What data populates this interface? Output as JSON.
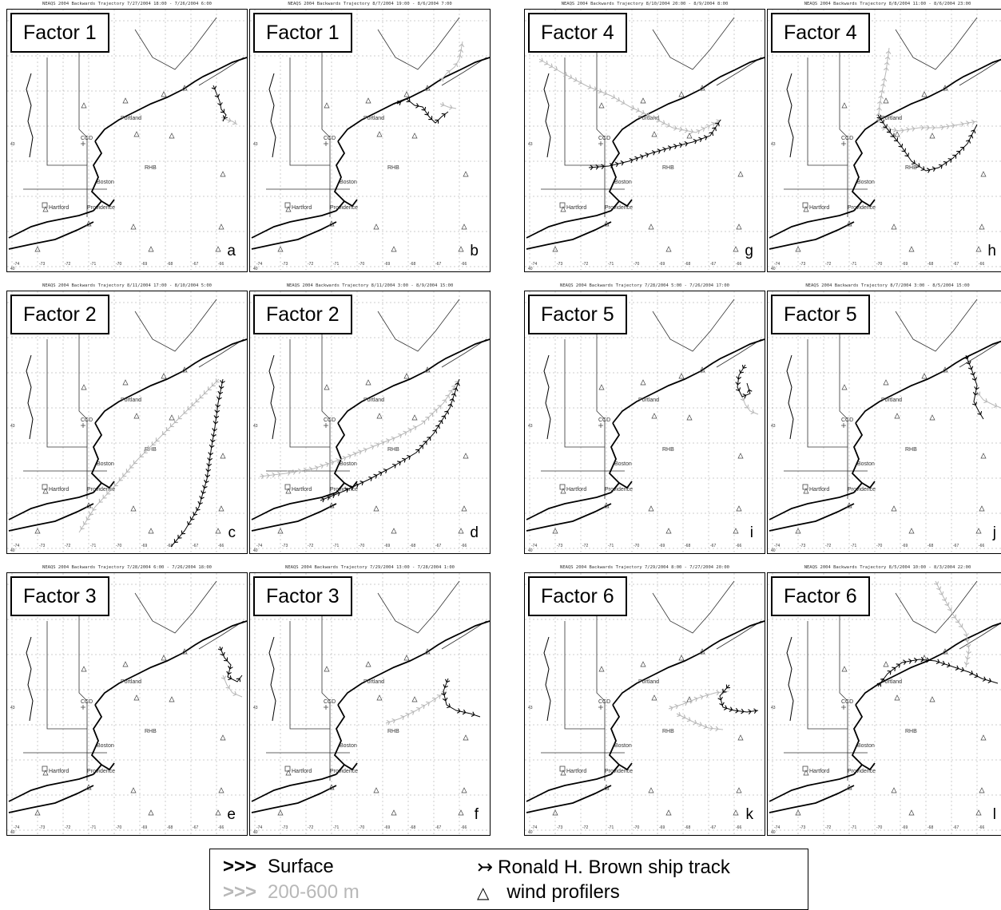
{
  "panels": [
    {
      "title": "NEAQS 2004 Backwards Trajectory 7/27/2004 18:00 - 7/26/2004 6:00",
      "factor": "Factor 1",
      "label": "a"
    },
    {
      "title": "NEAQS 2004 Backwards Trajectory 8/7/2004 19:00 - 8/6/2004 7:00",
      "factor": "Factor 1",
      "label": "b"
    },
    {
      "title": "NEAQS 2004 Backwards Trajectory 8/10/2004 20:00 - 8/9/2004 8:00",
      "factor": "Factor 4",
      "label": "g"
    },
    {
      "title": "NEAQS 2004 Backwards Trajectory 8/8/2004 11:00 - 8/6/2004 23:00",
      "factor": "Factor 4",
      "label": "h"
    },
    {
      "title": "NEAQS 2004 Backwards Trajectory 8/11/2004 17:00 - 8/10/2004 5:00",
      "factor": "Factor 2",
      "label": "c"
    },
    {
      "title": "NEAQS 2004 Backwards Trajectory 8/11/2004 3:00 - 8/9/2004 15:00",
      "factor": "Factor 2",
      "label": "d"
    },
    {
      "title": "NEAQS 2004 Backwards Trajectory 7/28/2004 5:00 - 7/26/2004 17:00",
      "factor": "Factor 5",
      "label": "i"
    },
    {
      "title": "NEAQS 2004 Backwards Trajectory 8/7/2004 3:00 - 8/5/2004 15:00",
      "factor": "Factor 5",
      "label": "j"
    },
    {
      "title": "NEAQS 2004 Backwards Trajectory 7/28/2004 6:00 - 7/26/2004 18:00",
      "factor": "Factor 3",
      "label": "e"
    },
    {
      "title": "NEAQS 2004 Backwards Trajectory 7/29/2004 13:00 - 7/28/2004 1:00",
      "factor": "Factor 3",
      "label": "f"
    },
    {
      "title": "NEAQS 2004 Backwards Trajectory 7/29/2004 8:00 - 7/27/2004 20:00",
      "factor": "Factor 6",
      "label": "k"
    },
    {
      "title": "NEAQS 2004 Backwards Trajectory 8/5/2004 10:00 - 8/3/2004 22:00",
      "factor": "Factor 6",
      "label": "l"
    }
  ],
  "map_labels": {
    "portland": "Portland",
    "ccd": "CCD",
    "boston": "Boston",
    "rhb": "RHB",
    "hartford": "Hartford",
    "providence": "Providence",
    "lat43": "43",
    "lat40": "40"
  },
  "lon_ticks": [
    "-74",
    "-73",
    "-72",
    "-71",
    "-70",
    "-69",
    "-68",
    "-67",
    "-66"
  ],
  "legend": {
    "surface_sym": ">>>",
    "surface_label": "Surface",
    "upper_sym": ">>>",
    "upper_label": "200-600 m",
    "ship_sym": "↣",
    "ship_label": "Ronald H. Brown ship track",
    "profiler_sym": "△",
    "profiler_label": "wind profilers"
  },
  "colors": {
    "surface": "#000000",
    "upper": "#b8b8b8",
    "grid": "#999999"
  }
}
